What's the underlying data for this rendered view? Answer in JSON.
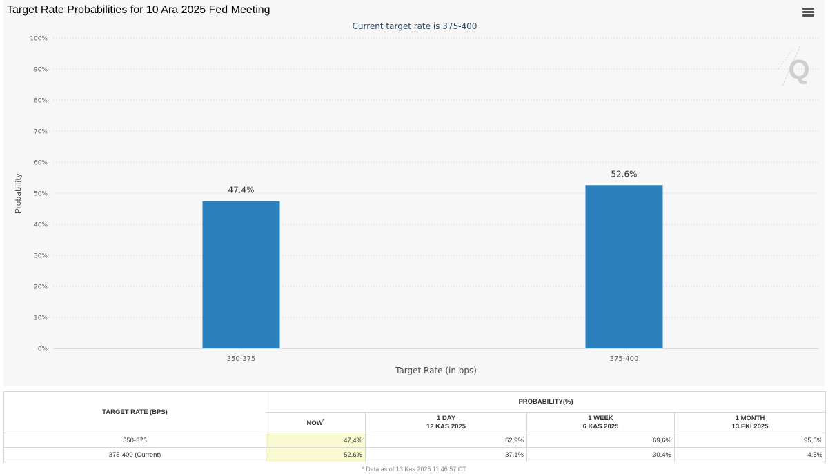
{
  "page": {
    "title": "Target Rate Probabilities for 10 Ara 2025 Fed Meeting",
    "menu_icon": "hamburger-menu-icon",
    "watermark_icon": "q-logo-icon"
  },
  "chart_data": {
    "type": "bar",
    "subtitle": "Current target rate is 375-400",
    "xlabel": "Target Rate (in bps)",
    "ylabel": "Probability",
    "categories": [
      "350-375",
      "375-400"
    ],
    "values": [
      47.4,
      52.6
    ],
    "data_labels": [
      "47.4%",
      "52.6%"
    ],
    "ylim": [
      0,
      100
    ],
    "yticks": [
      "0%",
      "10%",
      "20%",
      "30%",
      "40%",
      "50%",
      "60%",
      "70%",
      "80%",
      "90%",
      "100%"
    ],
    "grid": true,
    "bar_color": "#2b7fba"
  },
  "table": {
    "rate_header": "TARGET RATE (BPS)",
    "prob_header": "PROBABILITY(%)",
    "columns": [
      {
        "line1": "NOW",
        "line2": "",
        "star": "*"
      },
      {
        "line1": "1 DAY",
        "line2": "12 KAS 2025",
        "star": ""
      },
      {
        "line1": "1 WEEK",
        "line2": "6 KAS 2025",
        "star": ""
      },
      {
        "line1": "1 MONTH",
        "line2": "13 EKI 2025",
        "star": ""
      }
    ],
    "rows": [
      {
        "rate": "350-375",
        "values": [
          "47,4%",
          "62,9%",
          "69,6%",
          "95,5%"
        ]
      },
      {
        "rate": "375-400 (Current)",
        "values": [
          "52,6%",
          "37,1%",
          "30,4%",
          "4,5%"
        ]
      }
    ],
    "now_highlight": "#fafad2"
  },
  "footnote": "* Data as of 13 Kas 2025 11:46:57 CT"
}
